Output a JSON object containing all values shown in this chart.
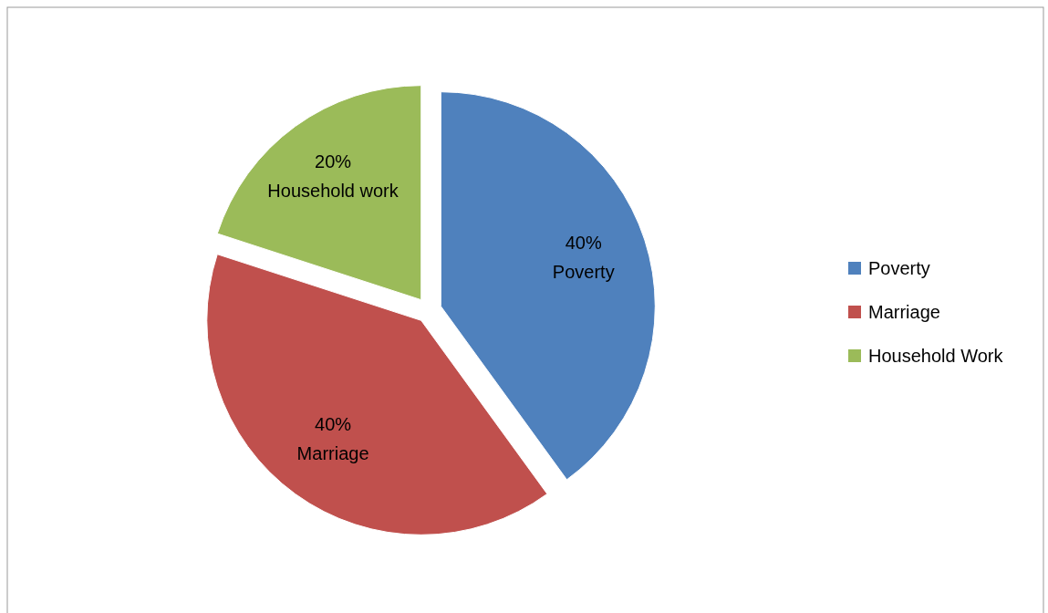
{
  "chart_data": {
    "type": "pie",
    "categories": [
      "Poverty",
      "Marriage",
      "Household Work"
    ],
    "values": [
      40,
      40,
      20
    ],
    "colors": [
      "#4f81bd",
      "#c0504d",
      "#9bbb59"
    ],
    "value_labels": [
      "40%\nPoverty",
      "40%\nMarriage",
      "20%\nHousehold work"
    ],
    "legend": "right"
  }
}
